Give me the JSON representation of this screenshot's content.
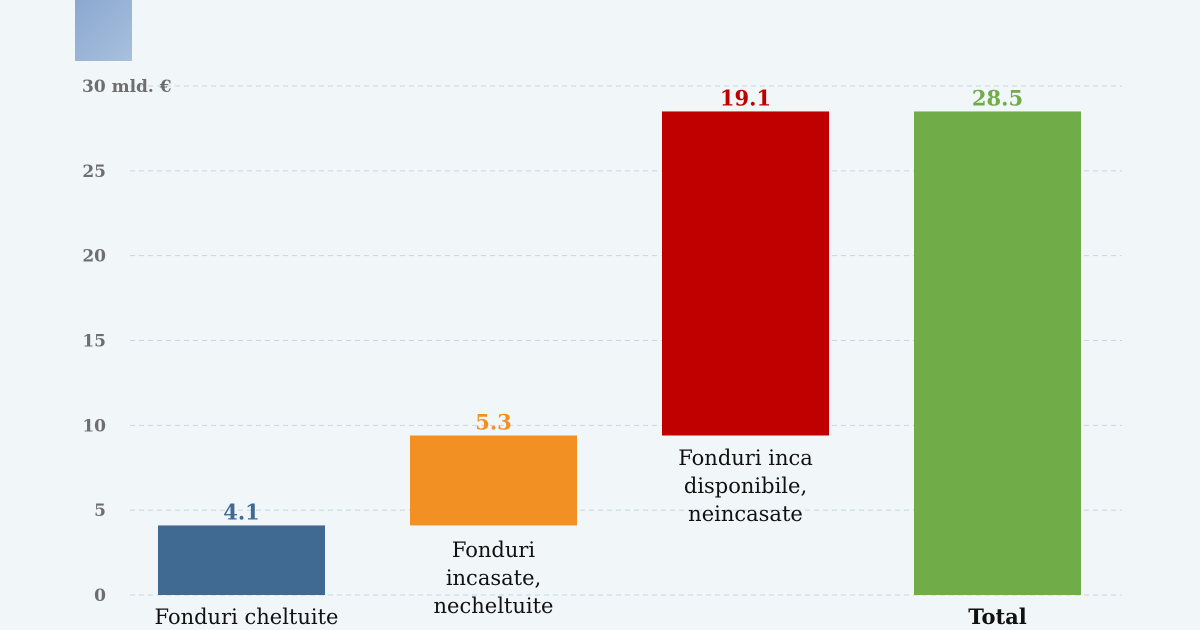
{
  "chart_data": {
    "type": "bar",
    "subtype": "waterfall",
    "unit_label": "30 mld. €",
    "ylim": [
      0,
      30
    ],
    "yticks": [
      "0",
      "5",
      "10",
      "15",
      "20",
      "25",
      "30 mld. €"
    ],
    "grid": true,
    "categories": [
      [
        "Fonduri cheltuite"
      ],
      [
        "Fonduri",
        "incasate,",
        "necheltuite"
      ],
      [
        "Fonduri inca",
        "disponibile,",
        "neincasate"
      ],
      [
        "Total"
      ]
    ],
    "values": [
      4.1,
      5.3,
      19.1,
      28.5
    ],
    "bases": [
      0,
      4.1,
      9.4,
      0
    ],
    "value_labels": [
      "4.1",
      "5.3",
      "19.1",
      "28.5"
    ],
    "colors": [
      "#416a93",
      "#f39024",
      "#c00000",
      "#70ac47"
    ]
  }
}
